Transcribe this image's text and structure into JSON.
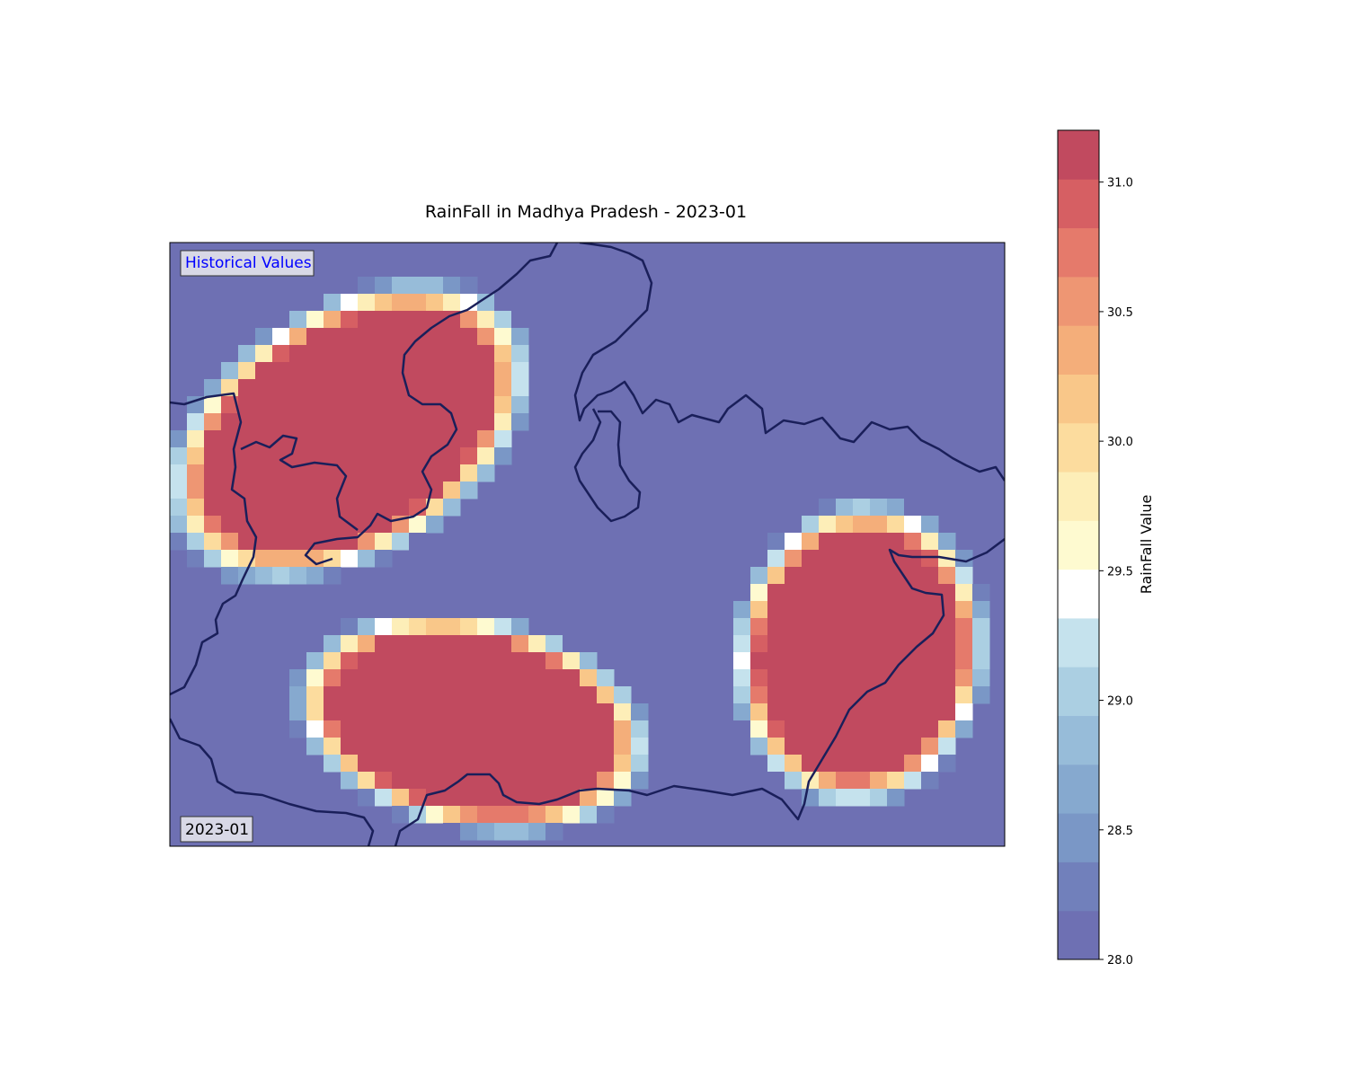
{
  "title": "RainFall in Madhya Pradesh - 2023-01",
  "badges": {
    "historical": "Historical Values",
    "date": "2023-01"
  },
  "colors": {
    "background_low": "#6e70b3",
    "high": "#c14a5f",
    "boundary": "#1a1f5a",
    "historical_text": "#0000ff"
  },
  "chart_data": {
    "type": "heatmap",
    "title": "RainFall in Madhya Pradesh - 2023-01",
    "region": "Madhya Pradesh",
    "period": "2023-01",
    "colorbar": {
      "label": "RainFall Value",
      "min": 28.0,
      "max": 31.2,
      "ticks": [
        "28.0",
        "28.5",
        "29.0",
        "29.5",
        "30.0",
        "30.5",
        "31.0"
      ],
      "tick_values": [
        28.0,
        28.5,
        29.0,
        29.5,
        30.0,
        30.5,
        31.0
      ],
      "colormap": "RdYlBu_r (discrete)"
    },
    "background_value": 28.0,
    "hotspots": [
      {
        "name": "north-west",
        "peak_value": 31.1
      },
      {
        "name": "south-central",
        "peak_value": 31.1
      },
      {
        "name": "east",
        "peak_value": 31.1
      }
    ]
  }
}
